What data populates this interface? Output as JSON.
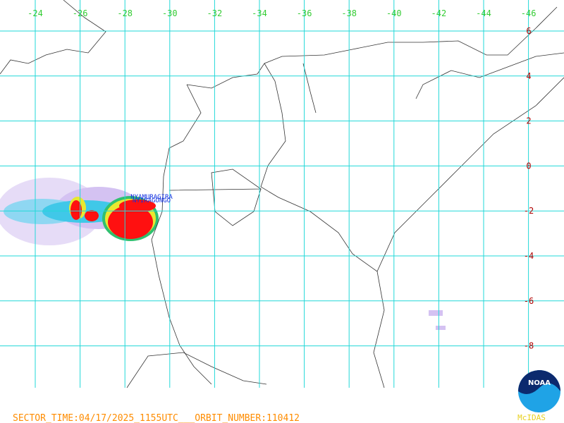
{
  "map": {
    "lon_labels": [
      -24,
      -26,
      -28,
      -30,
      -32,
      -34,
      -36,
      -38,
      -40,
      -42,
      -44,
      -46
    ],
    "lat_labels": [
      6,
      4,
      2,
      0,
      -2,
      -4,
      -6,
      -8
    ],
    "place_labels": [
      "NYAMURAGIRA",
      "NYIRAGONGO"
    ],
    "footer": "SECTOR_TIME:04/17/2025_1155UTC___ORBIT_NUMBER:110412",
    "credit": "McIDAS",
    "logo": "NOAA"
  }
}
